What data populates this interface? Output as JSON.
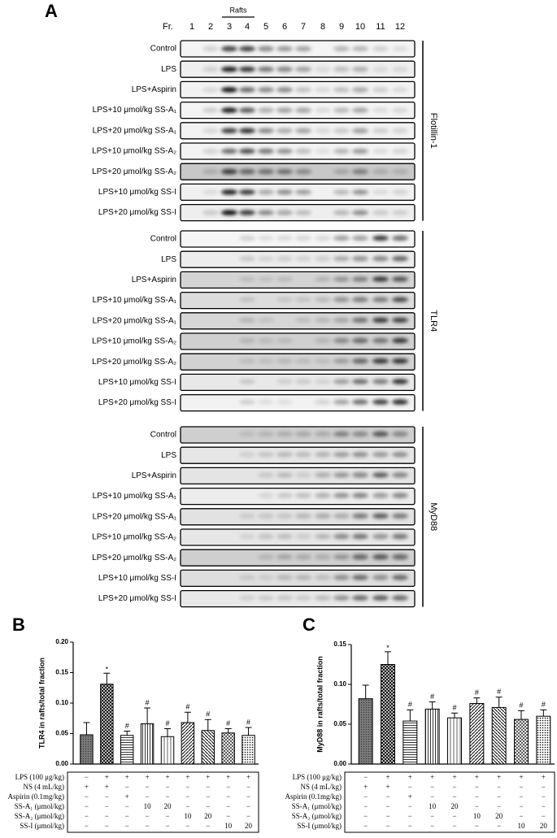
{
  "panel_a": {
    "label": "A",
    "fraction_label": "Fr.",
    "fractions": [
      "1",
      "2",
      "3",
      "4",
      "5",
      "6",
      "7",
      "8",
      "9",
      "10",
      "11",
      "12"
    ],
    "rafts_label": "Rafts",
    "groups": [
      {
        "name": "Flotillin-1",
        "rows": [
          "Control",
          "LPS",
          "LPS+Aspirin",
          "LPS+10 μmol/kg SS-A₁",
          "LPS+20 μmol/kg SS-A₁",
          "LPS+10 μmol/kg SS-A₂",
          "LPS+20 μmol/kg SS-A₂",
          "LPS+10 μmol/kg SS-I",
          "LPS+20 μmol/kg SS-I"
        ]
      },
      {
        "name": "TLR4",
        "rows": [
          "Control",
          "LPS",
          "LPS+Aspirin",
          "LPS+10 μmol/kg SS-A₁",
          "LPS+20 μmol/kg SS-A₁",
          "LPS+10 μmol/kg SS-A₂",
          "LPS+20 μmol/kg SS-A₂",
          "LPS+10 μmol/kg SS-I",
          "LPS+20 μmol/kg SS-I"
        ]
      },
      {
        "name": "MyD88",
        "rows": [
          "Control",
          "LPS",
          "LPS+Aspirin",
          "LPS+10 μmol/kg SS-A₁",
          "LPS+20 μmol/kg SS-A₁",
          "LPS+10 μmol/kg SS-A₂",
          "LPS+20 μmol/kg SS-A₂",
          "LPS+10 μmol/kg SS-I",
          "LPS+20 μmol/kg SS-I"
        ]
      }
    ]
  },
  "chart_data": [
    {
      "type": "bar",
      "panel_label": "B",
      "y_label": "TLR4 in rafts/total fraction",
      "values": [
        0.048,
        0.131,
        0.047,
        0.066,
        0.045,
        0.068,
        0.055,
        0.051,
        0.047
      ],
      "errors": [
        0.02,
        0.018,
        0.007,
        0.026,
        0.013,
        0.017,
        0.018,
        0.007,
        0.013
      ],
      "ylim": [
        0,
        0.2
      ],
      "yticks": [
        {
          "value": 0,
          "label": "0.00"
        },
        0.05,
        {
          "value": 0.1,
          "label": "0.10"
        },
        0.15,
        {
          "value": 0.2,
          "label": "0.20"
        }
      ],
      "annotations": [
        {
          "bar": 1,
          "text": "*"
        },
        {
          "bar": 2,
          "text": "#"
        },
        {
          "bar": 3,
          "text": "#"
        },
        {
          "bar": 4,
          "text": "#"
        },
        {
          "bar": 5,
          "text": "#"
        },
        {
          "bar": 6,
          "text": "#"
        },
        {
          "bar": 7,
          "text": "#"
        },
        {
          "bar": 8,
          "text": "#"
        }
      ],
      "table": [
        {
          "label": "LPS (100 μg/kg)",
          "cells": [
            "−",
            "+",
            "+",
            "+",
            "+",
            "+",
            "+",
            "+",
            "+"
          ]
        },
        {
          "label": "NS (4 mL/kg)",
          "cells": [
            "+",
            "+",
            "−",
            "−",
            "−",
            "−",
            "−",
            "−",
            "−"
          ]
        },
        {
          "label": "Aspirin (0.1mg/kg)",
          "cells": [
            "−",
            "−",
            "+",
            "−",
            "−",
            "−",
            "−",
            "−",
            "−"
          ]
        },
        {
          "label": "SS-A₁ (μmol/kg)",
          "cells": [
            "−",
            "−",
            "−",
            "10",
            "20",
            "−",
            "−",
            "−",
            "−"
          ]
        },
        {
          "label": "SS-A₂ (μmol/kg)",
          "cells": [
            "−",
            "−",
            "−",
            "−",
            "−",
            "10",
            "20",
            "−",
            "−"
          ]
        },
        {
          "label": "SS-I (μmol/kg)",
          "cells": [
            "−",
            "−",
            "−",
            "−",
            "−",
            "−",
            "−",
            "10",
            "20"
          ]
        }
      ]
    },
    {
      "type": "bar",
      "panel_label": "C",
      "y_label": "MyD88 in rafts/total fraction",
      "values": [
        0.082,
        0.125,
        0.054,
        0.069,
        0.058,
        0.076,
        0.071,
        0.056,
        0.06
      ],
      "errors": [
        0.017,
        0.016,
        0.014,
        0.009,
        0.006,
        0.007,
        0.013,
        0.011,
        0.008
      ],
      "ylim": [
        0,
        0.15
      ],
      "yticks": [
        {
          "value": 0,
          "label": "0.00"
        },
        0.05,
        {
          "value": 0.1,
          "label": "0.10"
        },
        0.15
      ],
      "annotations": [
        {
          "bar": 1,
          "text": "*"
        },
        {
          "bar": 2,
          "text": "#"
        },
        {
          "bar": 3,
          "text": "#"
        },
        {
          "bar": 4,
          "text": "#"
        },
        {
          "bar": 5,
          "text": "#"
        },
        {
          "bar": 6,
          "text": "#"
        },
        {
          "bar": 7,
          "text": "#"
        },
        {
          "bar": 8,
          "text": "#"
        }
      ],
      "table": [
        {
          "label": "LPS (100 μg/kg)",
          "cells": [
            "−",
            "+",
            "+",
            "+",
            "+",
            "+",
            "+",
            "+",
            "+"
          ]
        },
        {
          "label": "NS (4 mL/kg)",
          "cells": [
            "+",
            "+",
            "−",
            "−",
            "−",
            "−",
            "−",
            "−",
            "−"
          ]
        },
        {
          "label": "Aspirin (0.1mg/kg)",
          "cells": [
            "−",
            "−",
            "+",
            "−",
            "−",
            "−",
            "−",
            "−",
            "−"
          ]
        },
        {
          "label": "SS-A₁ (μmol/kg)",
          "cells": [
            "−",
            "−",
            "−",
            "10",
            "20",
            "−",
            "−",
            "−",
            "−"
          ]
        },
        {
          "label": "SS-A₂ (μmol/kg)",
          "cells": [
            "−",
            "−",
            "−",
            "−",
            "−",
            "10",
            "20",
            "−",
            "−"
          ]
        },
        {
          "label": "SS-I (μmol/kg)",
          "cells": [
            "−",
            "−",
            "−",
            "−",
            "−",
            "−",
            "−",
            "10",
            "20"
          ]
        }
      ]
    }
  ]
}
